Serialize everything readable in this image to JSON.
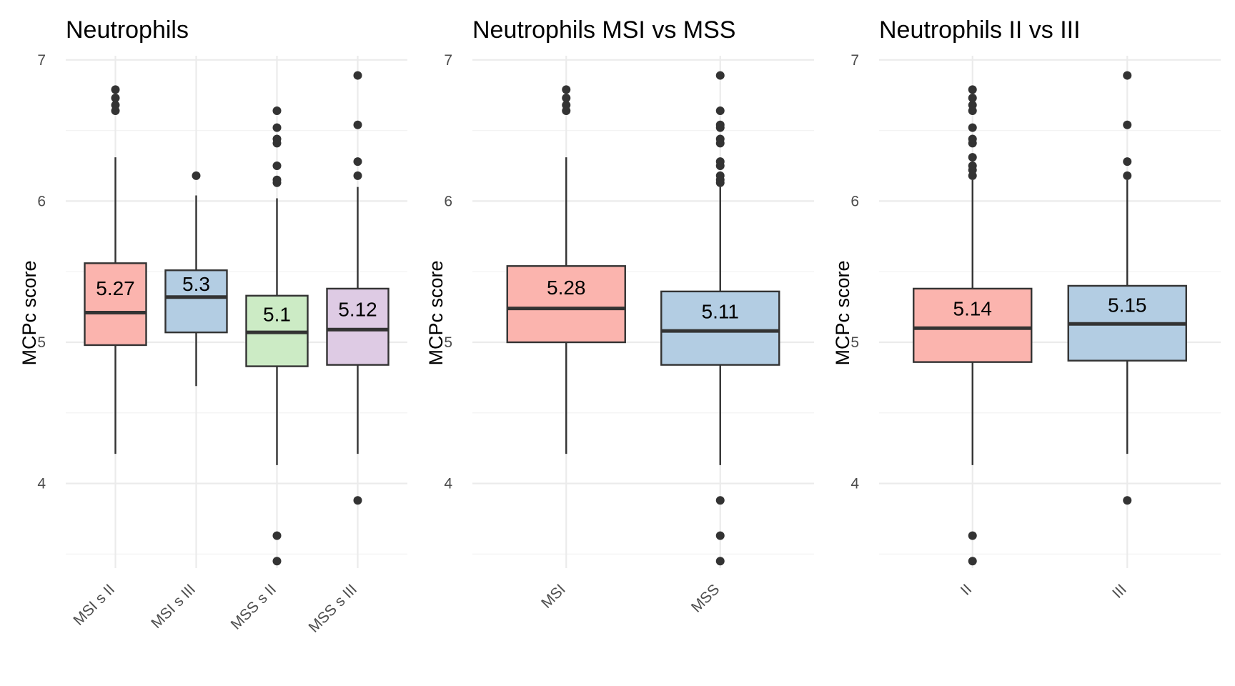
{
  "chart_data": [
    {
      "type": "box",
      "title": "Neutrophils",
      "ylabel": "MCPc score",
      "xlabel": "",
      "ylim": [
        3.35,
        7.07
      ],
      "yticks": [
        4,
        5,
        6,
        7
      ],
      "grid": true,
      "legend": "none",
      "categories": [
        "MSI s II",
        "MSI s III",
        "MSS s II",
        "MSS s III"
      ],
      "boxes": [
        {
          "category": "MSI s II",
          "color": "#FBB4AE",
          "lower_whisker": 4.21,
          "q1": 4.98,
          "median": 5.21,
          "q3": 5.56,
          "upper_whisker": 6.31,
          "outliers": [
            6.64,
            6.68,
            6.73,
            6.79
          ],
          "mean_label": "5.27"
        },
        {
          "category": "MSI s III",
          "color": "#B3CDE3",
          "lower_whisker": 4.69,
          "q1": 5.07,
          "median": 5.32,
          "q3": 5.51,
          "upper_whisker": 6.04,
          "outliers": [
            6.18
          ],
          "mean_label": "5.3"
        },
        {
          "category": "MSS s II",
          "color": "#CCEBC5",
          "lower_whisker": 4.13,
          "q1": 4.83,
          "median": 5.07,
          "q3": 5.33,
          "upper_whisker": 6.02,
          "outliers": [
            3.45,
            3.63,
            6.13,
            6.15,
            6.25,
            6.41,
            6.44,
            6.52,
            6.64
          ],
          "mean_label": "5.1"
        },
        {
          "category": "MSS s III",
          "color": "#DECBE4",
          "lower_whisker": 4.21,
          "q1": 4.84,
          "median": 5.09,
          "q3": 5.38,
          "upper_whisker": 6.1,
          "outliers": [
            3.88,
            6.18,
            6.28,
            6.54,
            6.89
          ],
          "mean_label": "5.12"
        }
      ]
    },
    {
      "type": "box",
      "title": "Neutrophils MSI vs MSS",
      "ylabel": "MCPc score",
      "xlabel": "",
      "ylim": [
        3.35,
        7.07
      ],
      "yticks": [
        4,
        5,
        6,
        7
      ],
      "grid": true,
      "legend": "none",
      "categories": [
        "MSI",
        "MSS"
      ],
      "boxes": [
        {
          "category": "MSI",
          "color": "#FBB4AE",
          "lower_whisker": 4.21,
          "q1": 5.0,
          "median": 5.24,
          "q3": 5.54,
          "upper_whisker": 6.31,
          "outliers": [
            6.64,
            6.68,
            6.73,
            6.79
          ],
          "mean_label": "5.28"
        },
        {
          "category": "MSS",
          "color": "#B3CDE3",
          "lower_whisker": 4.13,
          "q1": 4.84,
          "median": 5.08,
          "q3": 5.36,
          "upper_whisker": 6.1,
          "outliers": [
            3.45,
            3.63,
            3.88,
            6.13,
            6.15,
            6.18,
            6.25,
            6.28,
            6.41,
            6.44,
            6.52,
            6.54,
            6.64,
            6.89
          ],
          "mean_label": "5.11"
        }
      ]
    },
    {
      "type": "box",
      "title": "Neutrophils II vs III",
      "ylabel": "MCPc score",
      "xlabel": "",
      "ylim": [
        3.35,
        7.07
      ],
      "yticks": [
        4,
        5,
        6,
        7
      ],
      "grid": true,
      "legend": "none",
      "categories": [
        "II",
        "III"
      ],
      "boxes": [
        {
          "category": "II",
          "color": "#FBB4AE",
          "lower_whisker": 4.13,
          "q1": 4.86,
          "median": 5.1,
          "q3": 5.38,
          "upper_whisker": 6.15,
          "outliers": [
            3.45,
            3.63,
            6.18,
            6.22,
            6.25,
            6.31,
            6.41,
            6.44,
            6.52,
            6.64,
            6.68,
            6.73,
            6.79
          ],
          "mean_label": "5.14"
        },
        {
          "category": "III",
          "color": "#B3CDE3",
          "lower_whisker": 4.21,
          "q1": 4.87,
          "median": 5.13,
          "q3": 5.4,
          "upper_whisker": 6.15,
          "outliers": [
            3.88,
            6.18,
            6.28,
            6.54,
            6.89
          ],
          "mean_label": "5.15"
        }
      ]
    }
  ]
}
